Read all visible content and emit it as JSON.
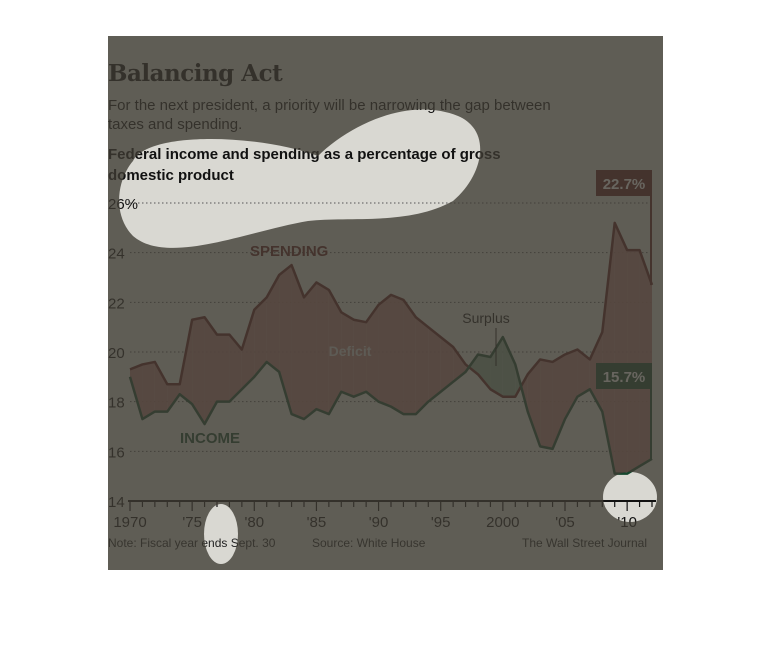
{
  "chart_data": {
    "type": "line",
    "title": "Balancing Act",
    "subtitle": "For the next president, a priority will be narrowing the gap between taxes and spending.",
    "heading": "Federal income and spending as a percentage of gross domestic product",
    "x": [
      1970,
      1971,
      1972,
      1973,
      1974,
      1975,
      1976,
      1977,
      1978,
      1979,
      1980,
      1981,
      1982,
      1983,
      1984,
      1985,
      1986,
      1987,
      1988,
      1989,
      1990,
      1991,
      1992,
      1993,
      1994,
      1995,
      1996,
      1997,
      1998,
      1999,
      2000,
      2001,
      2002,
      2003,
      2004,
      2005,
      2006,
      2007,
      2008,
      2009,
      2010,
      2011,
      2012
    ],
    "series": [
      {
        "name": "SPENDING",
        "color": "#5c1a1a",
        "values": [
          19.3,
          19.5,
          19.6,
          18.7,
          18.7,
          21.3,
          21.4,
          20.7,
          20.7,
          20.1,
          21.7,
          22.2,
          23.1,
          23.5,
          22.2,
          22.8,
          22.5,
          21.6,
          21.3,
          21.2,
          21.9,
          22.3,
          22.1,
          21.4,
          21.0,
          20.6,
          20.2,
          19.5,
          19.1,
          18.5,
          18.2,
          18.2,
          19.1,
          19.7,
          19.6,
          19.9,
          20.1,
          19.7,
          20.8,
          25.2,
          24.1,
          24.1,
          22.7
        ]
      },
      {
        "name": "INCOME",
        "color": "#15472e",
        "values": [
          19.0,
          17.3,
          17.6,
          17.6,
          18.3,
          17.9,
          17.1,
          18.0,
          18.0,
          18.5,
          19.0,
          19.6,
          19.2,
          17.5,
          17.3,
          17.7,
          17.5,
          18.4,
          18.2,
          18.4,
          18.0,
          17.8,
          17.5,
          17.5,
          18.0,
          18.4,
          18.8,
          19.2,
          19.9,
          19.8,
          20.6,
          19.5,
          17.6,
          16.2,
          16.1,
          17.3,
          18.2,
          18.5,
          17.6,
          15.1,
          15.1,
          15.4,
          15.7
        ]
      }
    ],
    "ylim": [
      14,
      26
    ],
    "y_ticks": [
      "26%",
      "24",
      "22",
      "20",
      "18",
      "16",
      "14"
    ],
    "y_tick_values": [
      26,
      24,
      22,
      20,
      18,
      16,
      14
    ],
    "x_ticks": [
      "1970",
      "'75",
      "'80",
      "'85",
      "'90",
      "'95",
      "2000",
      "'05",
      "'10"
    ],
    "x_tick_values": [
      1970,
      1975,
      1980,
      1985,
      1990,
      1995,
      2000,
      2005,
      2010
    ],
    "end_labels": {
      "spending": "22.7%",
      "income": "15.7%"
    },
    "annotations": {
      "deficit": "Deficit",
      "surplus": "Surplus"
    },
    "grid": true,
    "colors": {
      "deficit_fill": "#a86f6a",
      "surplus_fill": "#7d9c85",
      "grid": "#555555"
    }
  },
  "footer": {
    "note": "Note: Fiscal year ends Sept. 30",
    "source": "Source: White House",
    "credit": "The Wall Street Journal"
  }
}
